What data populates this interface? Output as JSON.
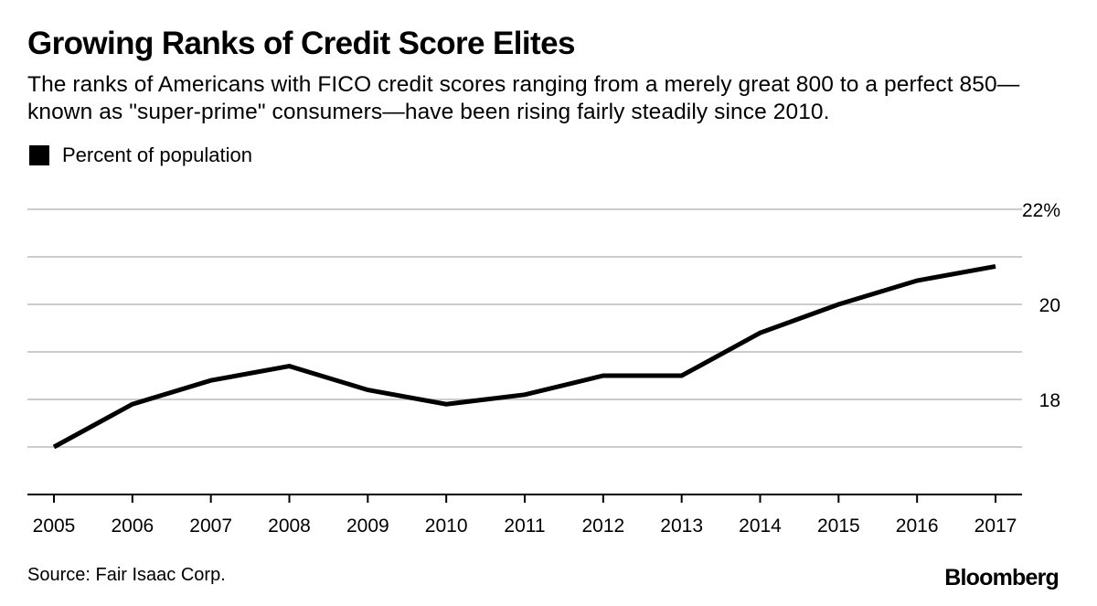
{
  "header": {
    "title": "Growing Ranks of Credit Score Elites",
    "subtitle": "The ranks of Americans with FICO credit scores ranging from a merely great 800 to a perfect 850—known as \"super-prime\" consumers—have been rising fairly steadily since 2010."
  },
  "legend": {
    "label": "Percent of population",
    "color": "#000000"
  },
  "chart_data": {
    "type": "line",
    "title": "Growing Ranks of Credit Score Elites",
    "xlabel": "",
    "ylabel": "",
    "categories": [
      "2005",
      "2006",
      "2007",
      "2008",
      "2009",
      "2010",
      "2011",
      "2012",
      "2013",
      "2014",
      "2015",
      "2016",
      "2017"
    ],
    "series": [
      {
        "name": "Percent of population",
        "color": "#000000",
        "values": [
          17.0,
          17.9,
          18.4,
          18.7,
          18.2,
          17.9,
          18.1,
          18.5,
          18.5,
          19.4,
          20.0,
          20.5,
          20.8
        ]
      }
    ],
    "ylim": [
      16,
      22
    ],
    "yticks": [
      16,
      17,
      18,
      19,
      20,
      21,
      22
    ],
    "ytick_labels": [
      {
        "value": 22,
        "label": "22%"
      },
      {
        "value": 20,
        "label": "20"
      },
      {
        "value": 18,
        "label": "18"
      }
    ],
    "grid": true,
    "y_axis_position": "right",
    "legend_position": "top-left"
  },
  "footer": {
    "source": "Source: Fair Isaac Corp.",
    "brand": "Bloomberg"
  }
}
